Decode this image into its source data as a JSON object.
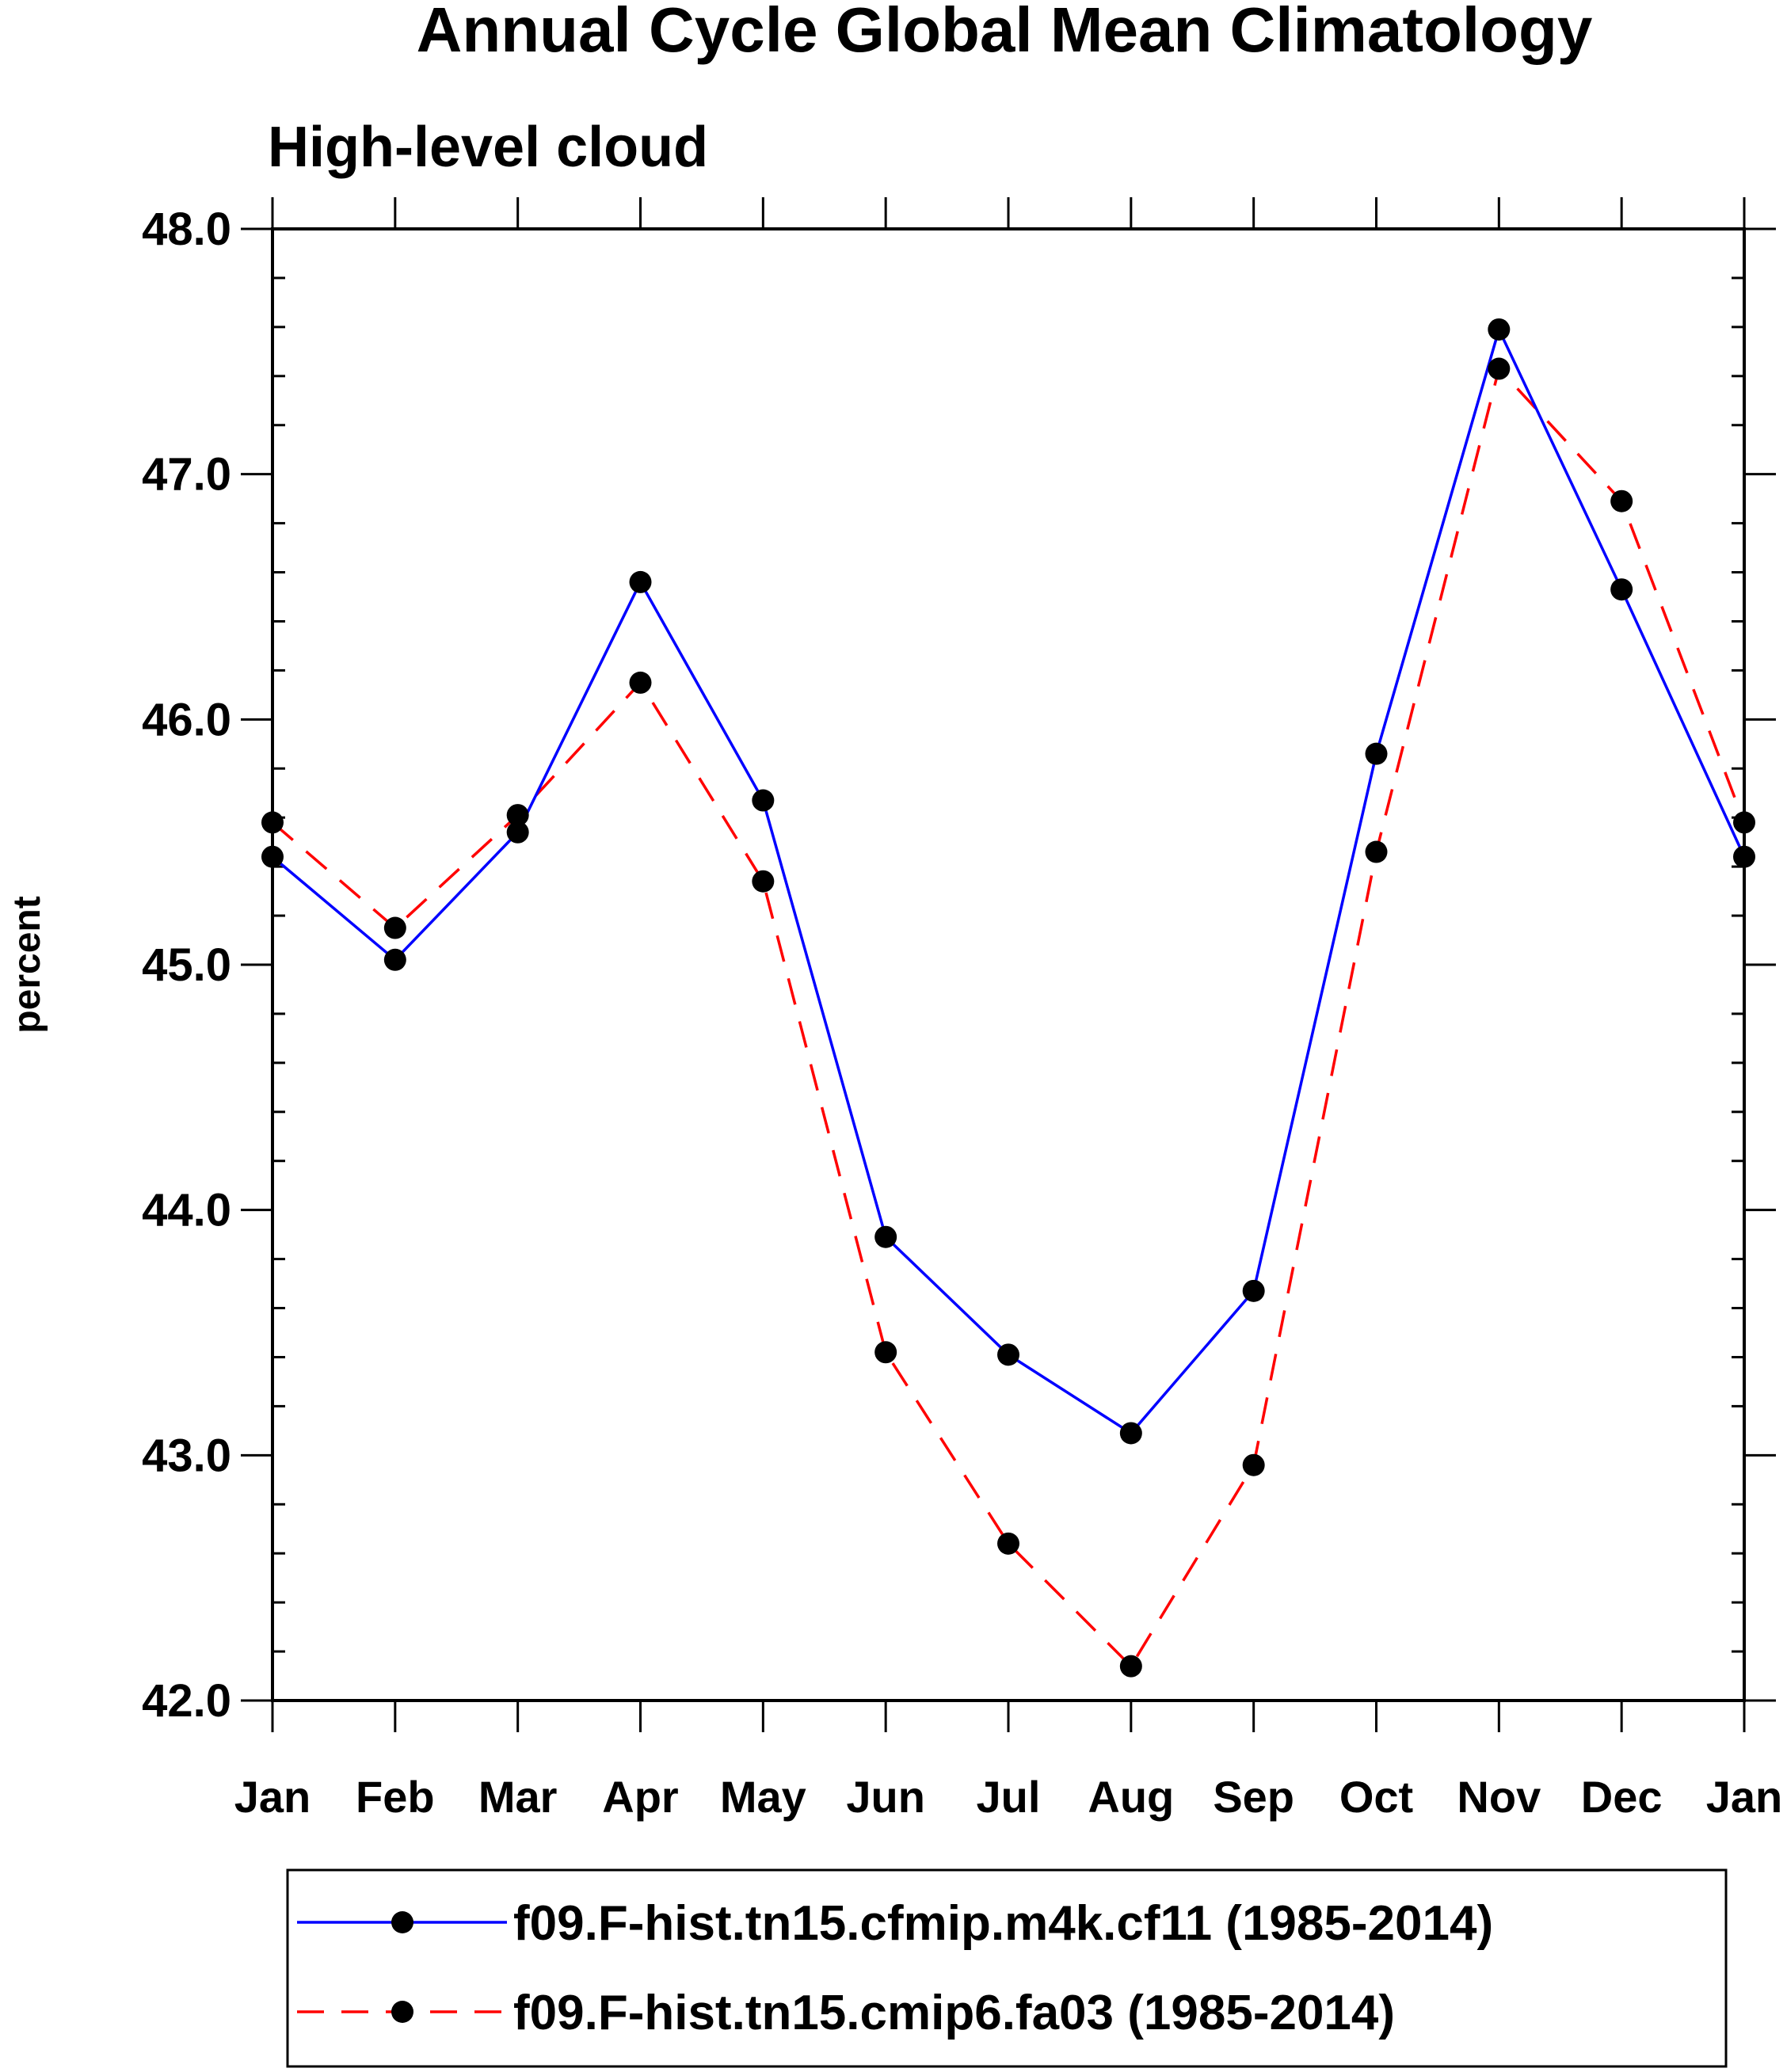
{
  "chart_data": {
    "type": "line",
    "title": "Annual Cycle Global Mean Climatology",
    "subtitle": "High-level cloud",
    "xlabel": "",
    "ylabel": "percent",
    "ylim": [
      42.0,
      48.0
    ],
    "yticks": [
      "42.0",
      "43.0",
      "44.0",
      "45.0",
      "46.0",
      "47.0",
      "48.0"
    ],
    "categories": [
      "Jan",
      "Feb",
      "Mar",
      "Apr",
      "May",
      "Jun",
      "Jul",
      "Aug",
      "Sep",
      "Oct",
      "Nov",
      "Dec",
      "Jan"
    ],
    "grid": false,
    "legend_position": "bottom",
    "series": [
      {
        "name": "f09.F-hist.tn15.cfmip.m4k.cf11 (1985-2014)",
        "color": "#0000ff",
        "line_style": "solid",
        "marker": "filled-circle",
        "values": [
          45.44,
          45.02,
          45.54,
          46.56,
          45.67,
          43.89,
          43.41,
          43.09,
          43.67,
          45.86,
          47.59,
          46.53,
          45.44
        ]
      },
      {
        "name": "f09.F-hist.tn15.cmip6.fa03 (1985-2014)",
        "color": "#ff0000",
        "line_style": "dashed",
        "marker": "filled-circle",
        "values": [
          45.58,
          45.15,
          45.61,
          46.15,
          45.34,
          43.42,
          42.64,
          42.14,
          42.96,
          45.46,
          47.43,
          46.89,
          45.58
        ]
      }
    ]
  }
}
